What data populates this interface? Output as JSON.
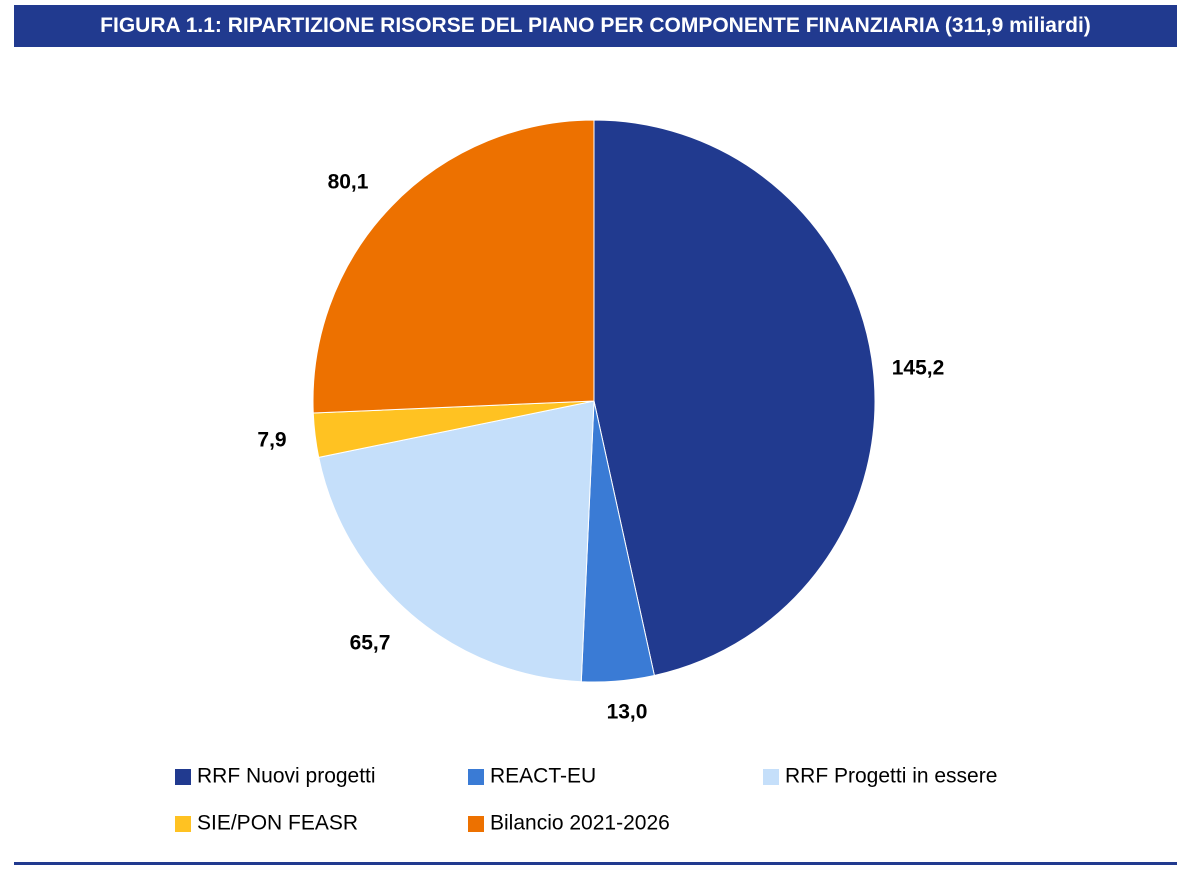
{
  "title": "FIGURA 1.1: RIPARTIZIONE RISORSE DEL PIANO PER COMPONENTE FINANZIARIA (311,9 miliardi)",
  "chart_data": {
    "type": "pie",
    "title": "FIGURA 1.1: RIPARTIZIONE RISORSE DEL PIANO PER COMPONENTE FINANZIARIA (311,9 miliardi)",
    "total": 311.9,
    "start_angle_deg": 0,
    "direction": "clockwise",
    "legend_position": "bottom",
    "slices": [
      {
        "name": "RRF Nuovi progetti",
        "value": 145.2,
        "label": "145,2",
        "color": "#213a8f"
      },
      {
        "name": "REACT-EU",
        "value": 13.0,
        "label": "13,0",
        "color": "#3a7bd5"
      },
      {
        "name": "RRF Progetti in essere",
        "value": 65.7,
        "label": "65,7",
        "color": "#c5dffa"
      },
      {
        "name": "SIE/PON FEASR",
        "value": 7.9,
        "label": "7,9",
        "color": "#ffc222"
      },
      {
        "name": "Bilancio 2021-2026",
        "value": 80.1,
        "label": "80,1",
        "color": "#ed7100"
      }
    ]
  }
}
